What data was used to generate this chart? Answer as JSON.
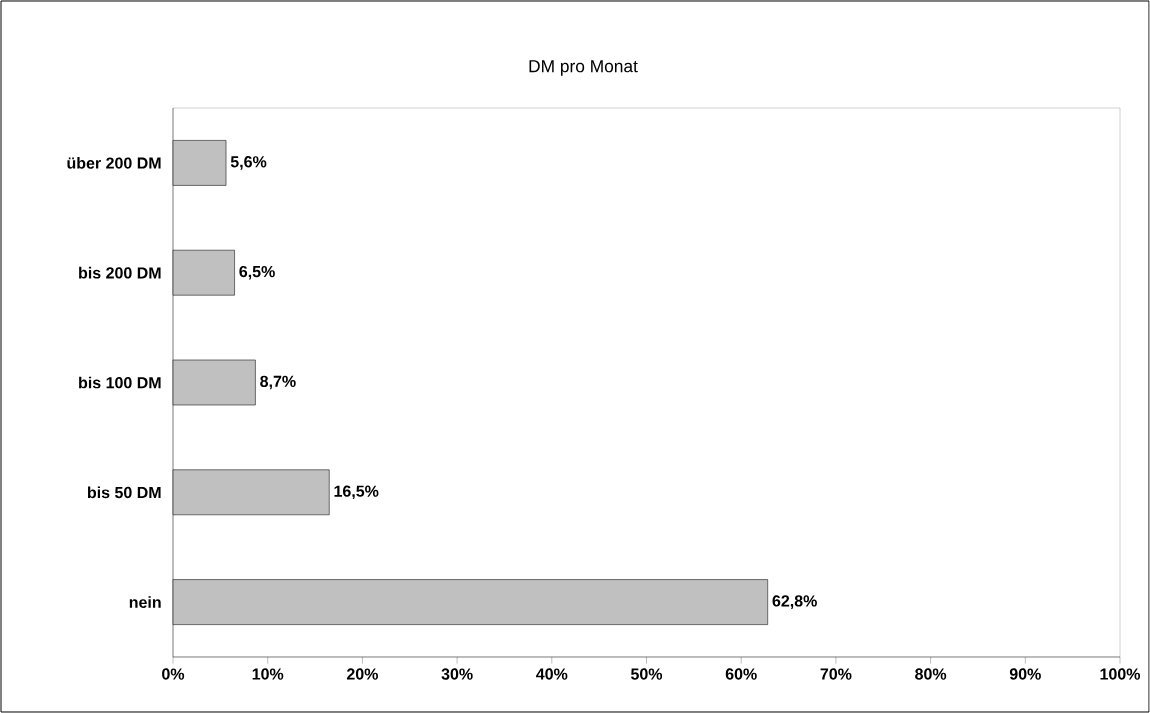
{
  "chart_data": {
    "type": "bar",
    "orientation": "horizontal",
    "title": "DM pro Monat",
    "categories": [
      "über 200 DM",
      "bis 200 DM",
      "bis 100 DM",
      "bis 50 DM",
      "nein"
    ],
    "values": [
      5.6,
      6.5,
      8.7,
      16.5,
      62.8
    ],
    "value_labels": [
      "5,6%",
      "6,5%",
      "8,7%",
      "16,5%",
      "62,8%"
    ],
    "color": "#c0c0c0",
    "xlim": [
      0,
      100
    ],
    "xticks": [
      {
        "value": 0,
        "label": "0%"
      },
      {
        "value": 10,
        "label": "10%"
      },
      {
        "value": 20,
        "label": "20%"
      },
      {
        "value": 30,
        "label": "30%"
      },
      {
        "value": 40,
        "label": "40%"
      },
      {
        "value": 50,
        "label": "50%"
      },
      {
        "value": 60,
        "label": "60%"
      },
      {
        "value": 70,
        "label": "70%"
      },
      {
        "value": 80,
        "label": "80%"
      },
      {
        "value": 90,
        "label": "90%"
      },
      {
        "value": 100,
        "label": "100%"
      }
    ]
  }
}
